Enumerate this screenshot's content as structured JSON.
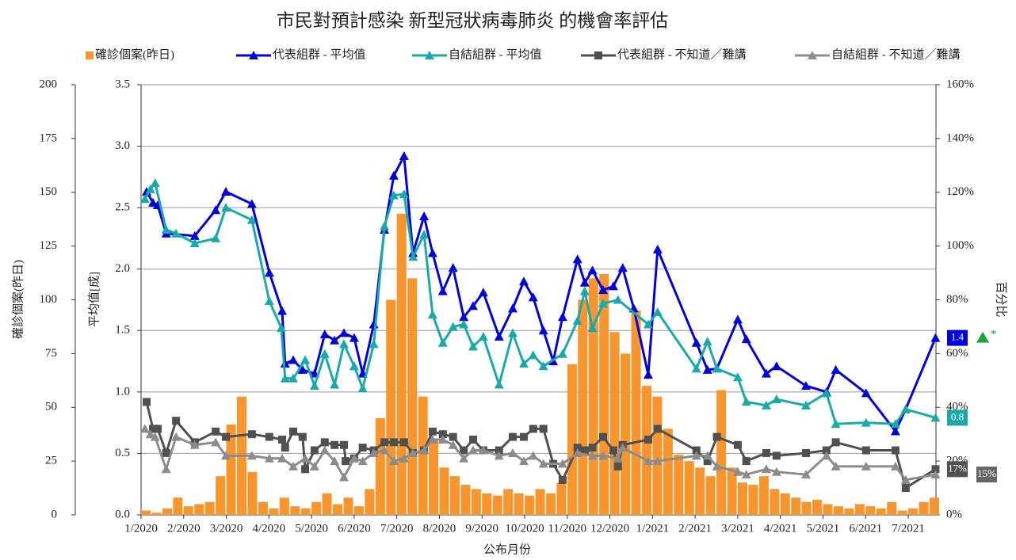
{
  "chart_data": {
    "type": "bar-line",
    "title": "市民對預計感染 新型冠狀病毒肺炎 的機會率評估",
    "x_label": "公布月份",
    "y_label": "確診個案(昨日)",
    "y2_label": "平均值[成]",
    "y3_label": "百分比",
    "xlim": [
      0,
      18.65
    ],
    "xticks": [
      {
        "value": 0,
        "label": "1/2020"
      },
      {
        "value": 1,
        "label": "2/2020"
      },
      {
        "value": 2,
        "label": "3/2020"
      },
      {
        "value": 3,
        "label": "4/2020"
      },
      {
        "value": 4,
        "label": "5/2020"
      },
      {
        "value": 5,
        "label": "6/2020"
      },
      {
        "value": 6,
        "label": "7/2020"
      },
      {
        "value": 7,
        "label": "8/2020"
      },
      {
        "value": 8,
        "label": "9/2020"
      },
      {
        "value": 9,
        "label": "10/2020"
      },
      {
        "value": 10,
        "label": "11/2020"
      },
      {
        "value": 11,
        "label": "12/2020"
      },
      {
        "value": 12,
        "label": "1/2021"
      },
      {
        "value": 13,
        "label": "2/2021"
      },
      {
        "value": 14,
        "label": "3/2021"
      },
      {
        "value": 15,
        "label": "4/2021"
      },
      {
        "value": 16,
        "label": "5/2021"
      },
      {
        "value": 17,
        "label": "6/2021"
      },
      {
        "value": 18,
        "label": "7/2021"
      }
    ],
    "ylim": [
      0,
      200
    ],
    "yticks": [
      0,
      25,
      50,
      75,
      100,
      125,
      150,
      175,
      200
    ],
    "y2lim": [
      0,
      3.5
    ],
    "y2ticks": [
      {
        "value": 0,
        "label": "0.0"
      },
      0.5,
      {
        "value": 1,
        "label": "1.0"
      },
      1.5,
      {
        "value": 2,
        "label": "2.0"
      },
      2.5,
      {
        "value": 3,
        "label": "3.0"
      },
      3.5
    ],
    "y3lim": [
      0,
      160
    ],
    "y3ticks": [
      {
        "value": 0,
        "label": "0%"
      },
      {
        "value": 20,
        "label": "20%"
      },
      {
        "value": 40,
        "label": "40%"
      },
      {
        "value": 60,
        "label": "60%"
      },
      {
        "value": 80,
        "label": "80%"
      },
      {
        "value": 100,
        "label": "100%"
      },
      {
        "value": 120,
        "label": "120%"
      },
      {
        "value": 140,
        "label": "140%"
      },
      {
        "value": 160,
        "label": "160%"
      }
    ],
    "grid": true,
    "legend": "top",
    "series": [
      {
        "name": "確診個案(昨日)",
        "type": "bar",
        "color": "#f7962f",
        "x": [
          0,
          0.25,
          0.5,
          0.75,
          1,
          1.25,
          1.5,
          1.75,
          2,
          2.25,
          2.5,
          2.75,
          3,
          3.25,
          3.5,
          3.75,
          4,
          4.25,
          4.5,
          4.75,
          5,
          5.25,
          5.5,
          5.75,
          6,
          6.25,
          6.5,
          6.75,
          7,
          7.25,
          7.5,
          7.75,
          8,
          8.25,
          8.5,
          8.75,
          9,
          9.25,
          9.5,
          9.75,
          10,
          10.25,
          10.5,
          10.75,
          11,
          11.25,
          11.5,
          11.75,
          12,
          12.25,
          12.5,
          12.75,
          13,
          13.25,
          13.5,
          13.75,
          14,
          14.25,
          14.5,
          14.75,
          15,
          15.25,
          15.5,
          15.75,
          16,
          16.25,
          16.5,
          16.75,
          17,
          17.25,
          17.5,
          17.75,
          18,
          18.25,
          18.5
        ],
        "values": [
          2,
          1,
          3,
          8,
          4,
          5,
          6,
          18,
          42,
          55,
          20,
          6,
          3,
          8,
          4,
          3,
          6,
          10,
          5,
          8,
          4,
          12,
          45,
          100,
          140,
          110,
          55,
          35,
          22,
          18,
          14,
          12,
          10,
          9,
          12,
          10,
          9,
          12,
          10,
          15,
          70,
          100,
          110,
          112,
          85,
          75,
          95,
          60,
          55,
          40,
          28,
          25,
          22,
          18,
          58,
          22,
          15,
          14,
          18,
          12,
          10,
          8,
          6,
          7,
          5,
          4,
          3,
          5,
          4,
          3,
          6,
          2,
          3,
          6,
          8
        ]
      },
      {
        "name": "代表組群 - 平均值",
        "type": "line",
        "axis": "y2",
        "color": "#0000dd",
        "marker": "triangle",
        "x": [
          0.13,
          0.28,
          0.39,
          0.59,
          1.26,
          1.75,
          1.99,
          2.6,
          3.01,
          3.31,
          3.38,
          3.57,
          3.79,
          4.07,
          4.31,
          4.54,
          4.76,
          5.0,
          5.2,
          5.46,
          5.71,
          5.93,
          6.17,
          6.38,
          6.64,
          6.84,
          7.08,
          7.32,
          7.57,
          7.79,
          8.03,
          8.4,
          8.72,
          8.98,
          9.2,
          9.44,
          9.67,
          9.89,
          10.24,
          10.41,
          10.59,
          10.84,
          11.08,
          11.3,
          11.56,
          11.9,
          12.12,
          13.03,
          13.29,
          13.51,
          14.0,
          14.2,
          14.67,
          14.91,
          15.6,
          16.08,
          16.3,
          17.01,
          17.7,
          17.94,
          18.64
        ],
        "values": [
          2.63,
          2.54,
          2.52,
          2.29,
          2.27,
          2.48,
          2.63,
          2.53,
          1.97,
          1.66,
          1.23,
          1.26,
          1.18,
          1.15,
          1.47,
          1.42,
          1.48,
          1.44,
          1.15,
          1.55,
          2.32,
          2.76,
          2.92,
          2.13,
          2.43,
          2.13,
          1.82,
          2.01,
          1.61,
          1.7,
          1.81,
          1.45,
          1.68,
          1.9,
          1.77,
          1.5,
          1.25,
          1.61,
          2.08,
          1.89,
          1.99,
          1.83,
          1.86,
          2.01,
          1.68,
          1.14,
          2.16,
          1.4,
          1.18,
          1.19,
          1.59,
          1.43,
          1.15,
          1.21,
          1.05,
          1.0,
          1.18,
          0.99,
          0.68,
          0.86,
          1.44
        ]
      },
      {
        "name": "自結組群 - 平均值",
        "type": "line",
        "axis": "y2",
        "color": "#1aa9a9",
        "marker": "triangle",
        "x": [
          0.09,
          0.22,
          0.33,
          0.59,
          0.82,
          1.26,
          1.75,
          1.99,
          2.6,
          3.01,
          3.29,
          3.38,
          3.57,
          3.85,
          4.07,
          4.31,
          4.54,
          4.76,
          5.0,
          5.2,
          5.46,
          5.71,
          5.93,
          6.17,
          6.38,
          6.64,
          6.84,
          7.08,
          7.32,
          7.57,
          7.79,
          8.03,
          8.4,
          8.72,
          8.98,
          9.2,
          9.44,
          9.89,
          10.24,
          10.41,
          10.59,
          10.84,
          11.19,
          11.9,
          12.12,
          13.03,
          13.29,
          13.51,
          14.0,
          14.2,
          14.67,
          14.91,
          15.6,
          16.08,
          16.3,
          17.01,
          17.7,
          17.94,
          18.64
        ],
        "values": [
          2.57,
          2.65,
          2.7,
          2.32,
          2.29,
          2.21,
          2.25,
          2.5,
          2.4,
          1.74,
          1.52,
          1.11,
          1.11,
          1.26,
          1.05,
          1.31,
          1.06,
          1.39,
          1.21,
          1.03,
          1.39,
          2.35,
          2.6,
          2.61,
          2.1,
          2.28,
          1.63,
          1.4,
          1.53,
          1.55,
          1.37,
          1.45,
          1.06,
          1.48,
          1.23,
          1.3,
          1.21,
          1.31,
          1.58,
          1.82,
          1.52,
          1.72,
          1.75,
          1.55,
          1.65,
          1.19,
          1.41,
          1.19,
          1.12,
          0.92,
          0.89,
          0.94,
          0.89,
          0.99,
          0.74,
          0.75,
          0.74,
          0.86,
          0.79
        ]
      },
      {
        "name": "代表組群 - 不知道／難講",
        "type": "line",
        "axis": "y3",
        "color": "#505050",
        "marker": "square",
        "x": [
          0.13,
          0.28,
          0.39,
          0.59,
          0.82,
          1.26,
          1.75,
          1.99,
          2.6,
          3.01,
          3.31,
          3.38,
          3.57,
          3.79,
          3.85,
          4.07,
          4.31,
          4.54,
          4.76,
          4.8,
          5.0,
          5.2,
          5.46,
          5.71,
          5.93,
          6.17,
          6.38,
          6.64,
          6.84,
          7.08,
          7.32,
          7.57,
          7.79,
          8.03,
          8.4,
          8.72,
          8.98,
          9.2,
          9.44,
          9.67,
          9.89,
          10.24,
          10.41,
          10.59,
          10.84,
          11.08,
          11.19,
          11.3,
          11.9,
          12.12,
          13.03,
          13.29,
          13.51,
          14.0,
          14.2,
          14.67,
          14.91,
          15.6,
          16.08,
          16.3,
          17.01,
          17.7,
          17.94,
          18.64
        ],
        "values": [
          42,
          32,
          32,
          23,
          35,
          27,
          31,
          29,
          30,
          29,
          28,
          25,
          31,
          29,
          17,
          24,
          27,
          26,
          26,
          20,
          21,
          25,
          24,
          27,
          27,
          27,
          23,
          24,
          31,
          30,
          29,
          24,
          28,
          24,
          24,
          29,
          29,
          32,
          32,
          19,
          13,
          25,
          24,
          25,
          29,
          24,
          18,
          26,
          28,
          32,
          24,
          20,
          29,
          26,
          20,
          23,
          22,
          23,
          24,
          27,
          24,
          24,
          10,
          17
        ]
      },
      {
        "name": "自結組群 - 不知道／難講",
        "type": "line",
        "axis": "y3",
        "color": "#8c8c8c",
        "marker": "triangle",
        "x": [
          0.09,
          0.22,
          0.33,
          0.59,
          0.82,
          1.26,
          1.75,
          1.99,
          2.6,
          3.01,
          3.31,
          3.57,
          3.85,
          4.07,
          4.31,
          4.54,
          4.76,
          5.0,
          5.2,
          5.46,
          5.71,
          5.93,
          6.17,
          6.38,
          6.64,
          6.84,
          7.08,
          7.32,
          7.57,
          7.79,
          8.03,
          8.4,
          8.72,
          8.98,
          9.2,
          9.44,
          9.89,
          10.24,
          10.59,
          10.84,
          11.19,
          11.3,
          11.9,
          12.12,
          13.03,
          13.29,
          13.51,
          14.0,
          14.2,
          14.67,
          14.91,
          15.6,
          16.08,
          16.3,
          17.01,
          17.7,
          17.94,
          18.64
        ],
        "values": [
          32,
          30,
          29,
          17,
          29,
          26,
          27,
          22,
          22,
          21,
          21,
          18,
          21,
          18,
          24,
          20,
          14,
          21,
          20,
          23,
          24,
          20,
          21,
          23,
          24,
          28,
          28,
          26,
          21,
          24,
          24,
          22,
          23,
          20,
          22,
          19,
          19,
          23,
          22,
          22,
          21,
          25,
          20,
          20,
          22,
          22,
          18,
          16,
          15,
          17,
          16,
          15,
          22,
          18,
          18,
          18,
          13,
          15
        ]
      }
    ],
    "annotations": [
      "1.4",
      "0.8",
      "17%",
      "15%",
      "*"
    ]
  }
}
